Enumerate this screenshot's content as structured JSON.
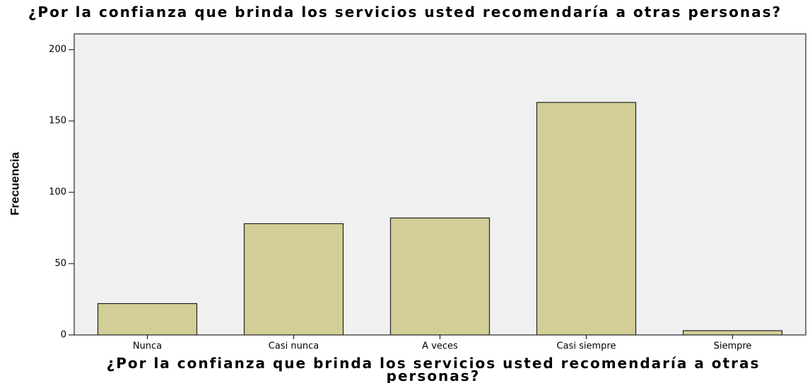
{
  "chart_data": {
    "type": "bar",
    "title": "¿Por la confianza que brinda los servicios usted recomendaría a otras personas?",
    "xlabel": "¿Por la confianza que brinda los servicios usted recomendaría a otras personas?",
    "ylabel": "Frecuencia",
    "categories": [
      "Nunca",
      "Casi nunca",
      "A veces",
      "Casi siempre",
      "Siempre"
    ],
    "values": [
      22,
      78,
      82,
      163,
      3
    ],
    "color": "#d3ce97",
    "ylim": [
      0,
      211
    ],
    "yticks": [
      0,
      50,
      100,
      150,
      200
    ],
    "grid": false
  }
}
